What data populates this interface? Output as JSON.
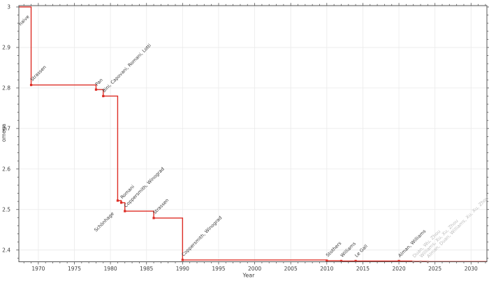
{
  "chart_data": {
    "type": "line",
    "step": "post",
    "title": "",
    "xlabel": "Year",
    "ylabel": "omega",
    "xlim": [
      1967.3,
      2032.2
    ],
    "ylim": [
      2.371,
      3.0034
    ],
    "grid": true,
    "legend": "none",
    "colors": {
      "line": "#dd2d25",
      "marker": "#dd2d25",
      "faded_marker": "#f0aba6",
      "point_label": "#3a3a3a",
      "faded_point_label": "#bdbdbd",
      "grid": "#eaeaea",
      "axis": "#545454",
      "tick_label": "#3d3d3d"
    },
    "x_ticks": [
      {
        "value": 1970,
        "label": "1970"
      },
      {
        "value": 1975,
        "label": "1975"
      },
      {
        "value": 1980,
        "label": "1980"
      },
      {
        "value": 1985,
        "label": "1985"
      },
      {
        "value": 1990,
        "label": "1990"
      },
      {
        "value": 1995,
        "label": "1995"
      },
      {
        "value": 2000,
        "label": "2000"
      },
      {
        "value": 2005,
        "label": "2005"
      },
      {
        "value": 2010,
        "label": "2010"
      },
      {
        "value": 2015,
        "label": "2015"
      },
      {
        "value": 2020,
        "label": "2020"
      },
      {
        "value": 2025,
        "label": "2025"
      },
      {
        "value": 2030,
        "label": "2030"
      }
    ],
    "y_ticks": [
      {
        "value": 3.0,
        "label": "3"
      },
      {
        "value": 2.9,
        "label": "2.9"
      },
      {
        "value": 2.8,
        "label": "2.8"
      },
      {
        "value": 2.7,
        "label": "2.7"
      },
      {
        "value": 2.6,
        "label": "2.6"
      },
      {
        "value": 2.5,
        "label": "2.5"
      },
      {
        "value": 2.4,
        "label": "2.4"
      }
    ],
    "minor_tick_step_x_years": 1,
    "minor_tick_step_y": 0.02,
    "initial": {
      "label": "naive",
      "omega": 3.0
    },
    "points": [
      {
        "year": 1969,
        "omega": 2.8074,
        "label": "Strassen"
      },
      {
        "year": 1978,
        "omega": 2.796,
        "label": "Pan"
      },
      {
        "year": 1979,
        "omega": 2.78,
        "label": "Bini, Capovani, Romani, Lotti"
      },
      {
        "year": 1981,
        "omega": 2.522,
        "label": "Schönhage",
        "label_anchor": "end"
      },
      {
        "year": 1981.5,
        "omega": 2.517,
        "label": "Romani"
      },
      {
        "year": 1982,
        "omega": 2.496,
        "label": "Coppersmith, Winograd"
      },
      {
        "year": 1986,
        "omega": 2.479,
        "label": "Strassen"
      },
      {
        "year": 1990,
        "omega": 2.3755,
        "label": "Coppersmith, Winograd"
      },
      {
        "year": 2010,
        "omega": 2.3737,
        "label": "Stothers"
      },
      {
        "year": 2012,
        "omega": 2.3729,
        "label": "Williams"
      },
      {
        "year": 2014,
        "omega": 2.37287,
        "label": "Le Gall"
      },
      {
        "year": 2020,
        "omega": 2.37286,
        "label": "Alman, Williams"
      },
      {
        "year": 2022,
        "omega": 2.37188,
        "label": "Duan, Wu, Zhou",
        "faded": true
      },
      {
        "year": 2023,
        "omega": 2.371866,
        "label": "Williams, Xu, Xu, Zhou",
        "faded": true
      },
      {
        "year": 2024,
        "omega": 2.371552,
        "label": "Alman, Duan, Williams, Xu, Xu, Zhou",
        "faded": true
      }
    ]
  }
}
